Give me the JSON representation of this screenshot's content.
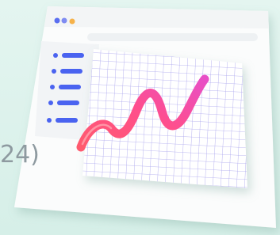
{
  "caption": {
    "fragment": "24)"
  }
}
